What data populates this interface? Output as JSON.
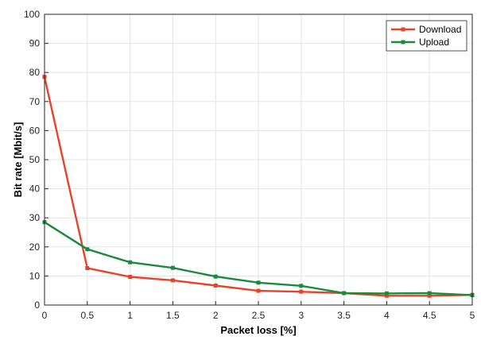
{
  "chart_data": {
    "type": "line",
    "title": "",
    "xlabel": "Packet loss [%]",
    "ylabel": "Bit rate [Mbit/s]",
    "xlim": [
      0,
      5
    ],
    "ylim": [
      0,
      100
    ],
    "xticks": [
      0,
      0.5,
      1,
      1.5,
      2,
      2.5,
      3,
      3.5,
      4,
      4.5,
      5
    ],
    "xtick_labels": [
      "0",
      "0.5",
      "1",
      "1.5",
      "2",
      "2.5",
      "3",
      "3.5",
      "4",
      "4.5",
      "5"
    ],
    "yticks": [
      0,
      10,
      20,
      30,
      40,
      50,
      60,
      70,
      80,
      90,
      100
    ],
    "ytick_labels": [
      "0",
      "10",
      "20",
      "30",
      "40",
      "50",
      "60",
      "70",
      "80",
      "90",
      "100"
    ],
    "grid": true,
    "legend_position": "top-right",
    "x": [
      0,
      0.5,
      1,
      1.5,
      2,
      2.5,
      3,
      3.5,
      4,
      4.5,
      5
    ],
    "series": [
      {
        "name": "Download",
        "color": "#e8432a",
        "values": [
          78.5,
          12.7,
          9.7,
          8.5,
          6.7,
          4.9,
          4.6,
          4.1,
          3.2,
          3.2,
          3.5
        ]
      },
      {
        "name": "Upload",
        "color": "#1a8a3c",
        "values": [
          28.5,
          19.2,
          14.7,
          12.8,
          9.8,
          7.7,
          6.6,
          4.1,
          4.0,
          4.1,
          3.4
        ]
      }
    ]
  }
}
